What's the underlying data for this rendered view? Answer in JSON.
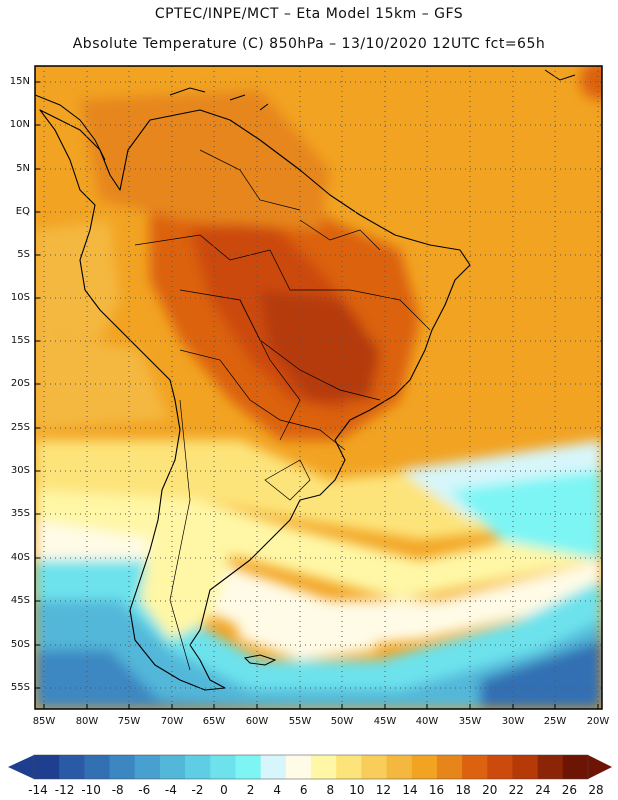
{
  "header": {
    "line1": "CPTEC/INPE/MCT –  Eta Model 15km – GFS",
    "line2": "Absolute Temperature (C) 850hPa – 13/10/2020 12UTC fct=65h"
  },
  "map": {
    "region": "South America",
    "field": "temperature_850hPa",
    "latitude_labels": [
      "15N",
      "10N",
      "5N",
      "EQ",
      "5S",
      "10S",
      "15S",
      "20S",
      "25S",
      "30S",
      "35S",
      "40S",
      "45S",
      "50S",
      "55S"
    ],
    "longitude_labels": [
      "85W",
      "80W",
      "75W",
      "70W",
      "65W",
      "60W",
      "55W",
      "50W",
      "45W",
      "40W",
      "35W",
      "30W",
      "25W",
      "20W"
    ],
    "grid": "dotted"
  },
  "colorbar": {
    "labels": [
      "-14",
      "-12",
      "-10",
      "-8",
      "-6",
      "-4",
      "-2",
      "0",
      "2",
      "4",
      "6",
      "8",
      "10",
      "12",
      "14",
      "16",
      "18",
      "20",
      "22",
      "24",
      "26",
      "28"
    ],
    "colors": [
      "#1e3f8f",
      "#2a5aa6",
      "#3370b3",
      "#3c87c2",
      "#47a0cf",
      "#52b7d9",
      "#5fcde3",
      "#6de2ec",
      "#7df5f5",
      "#d7f6fb",
      "#fffbe6",
      "#fff7a6",
      "#fde47a",
      "#f9cd5a",
      "#f4b83f",
      "#f2a322",
      "#e6861a",
      "#dc6210",
      "#cc4a0b",
      "#b53a07",
      "#8c2406",
      "#6e1405"
    ]
  }
}
